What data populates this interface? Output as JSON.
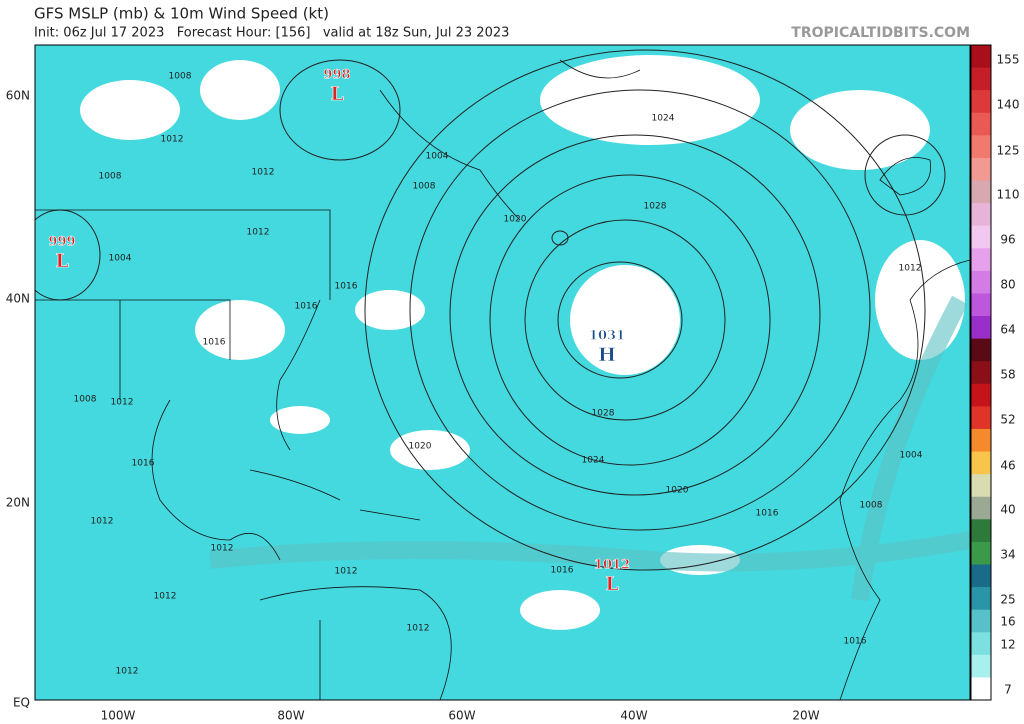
{
  "header": {
    "title": "GFS MSLP (mb) & 10m Wind Speed (kt)",
    "subtitle": "Init: 06z Jul 17 2023   Forecast Hour: [156]   valid at 18z Sun, Jul 23 2023",
    "watermark": "TROPICALTIDBITS.COM"
  },
  "latitude_labels": [
    "60N",
    "40N",
    "20N",
    "EQ"
  ],
  "longitude_labels": [
    "100W",
    "80W",
    "60W",
    "40W",
    "20W"
  ],
  "colorbar": {
    "labels": [
      "155",
      "140",
      "125",
      "110",
      "96",
      "80",
      "64",
      "58",
      "52",
      "46",
      "40",
      "34",
      "25",
      "16",
      "12",
      "7"
    ]
  },
  "pressure_centers": [
    {
      "value": "998",
      "symbol": "L"
    },
    {
      "value": "999",
      "symbol": "L"
    },
    {
      "value": "1031",
      "symbol": "H"
    },
    {
      "value": "1012",
      "symbol": "L"
    }
  ],
  "isobar_labels": [
    "1008",
    "1012",
    "1004",
    "1008",
    "1012",
    "1012",
    "1004",
    "1016",
    "1016",
    "1016",
    "1020",
    "1020",
    "1024",
    "1028",
    "1028",
    "1024",
    "1020",
    "1016",
    "1016",
    "1012",
    "1012",
    "1012",
    "1012",
    "1012",
    "1008",
    "1008",
    "1004",
    "1012",
    "1008",
    "1016",
    "1016",
    "1012",
    "1012"
  ]
}
